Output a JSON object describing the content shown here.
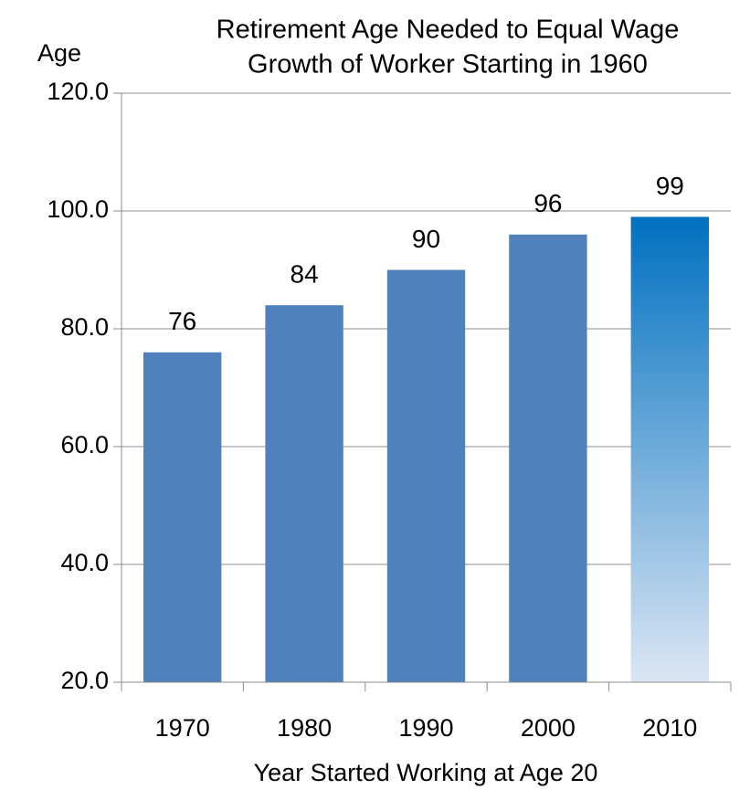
{
  "chart_data": {
    "type": "bar",
    "title": [
      "Retirement Age Needed to Equal Wage",
      "Growth of Worker Starting in 1960"
    ],
    "ylabel": "Age",
    "xlabel": "Year Started Working at Age 20",
    "categories": [
      "1970",
      "1980",
      "1990",
      "2000",
      "2010"
    ],
    "values": [
      76,
      84,
      90,
      96,
      99
    ],
    "colors": [
      "#4f81bd",
      "#4f81bd",
      "#4f81bd",
      "#4f81bd",
      {
        "gradient": [
          "#0070c0",
          "#dce6f4"
        ]
      }
    ],
    "ylim": [
      20,
      120
    ],
    "yticks": [
      {
        "value": 20,
        "label": "20.0"
      },
      {
        "value": 40,
        "label": "40.0"
      },
      {
        "value": 60,
        "label": "60.0"
      },
      {
        "value": 80,
        "label": "80.0"
      },
      {
        "value": 100,
        "label": "100.0"
      },
      {
        "value": 120,
        "label": "120.0"
      }
    ],
    "grid": true
  }
}
